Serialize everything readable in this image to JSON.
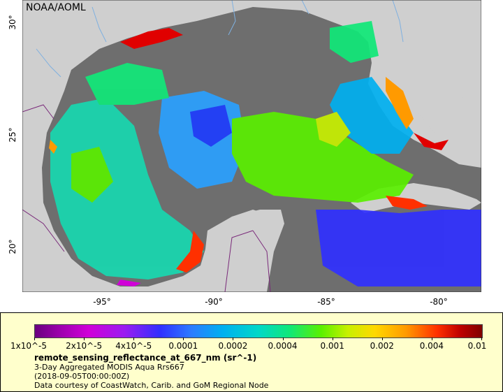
{
  "map": {
    "agency": "NOAA/AOML",
    "lat_labels": [
      "30°",
      "25°",
      "20°"
    ],
    "lon_labels": [
      "-95°",
      "-90°",
      "-85°",
      "-80°"
    ]
  },
  "legend": {
    "ticks": [
      "1x10^-5",
      "2x10^-5",
      "4x10^-5",
      "0.0001",
      "0.0002",
      "0.0004",
      "0.001",
      "0.002",
      "0.004",
      "0.01"
    ],
    "variable": "remote_sensing_reflectance_at_667_nm (sr^-1)",
    "product": "3-Day Aggregated MODIS Aqua Rrs667",
    "time": "(2018-09-05T00:00:00Z)",
    "credit": "Data courtesy of CoastWatch, Carib. and GoM Regional Node"
  },
  "colors": {
    "land": "#cfcfcf",
    "no_data": "#6e6e6e",
    "legend_background": "#ffffcc"
  }
}
